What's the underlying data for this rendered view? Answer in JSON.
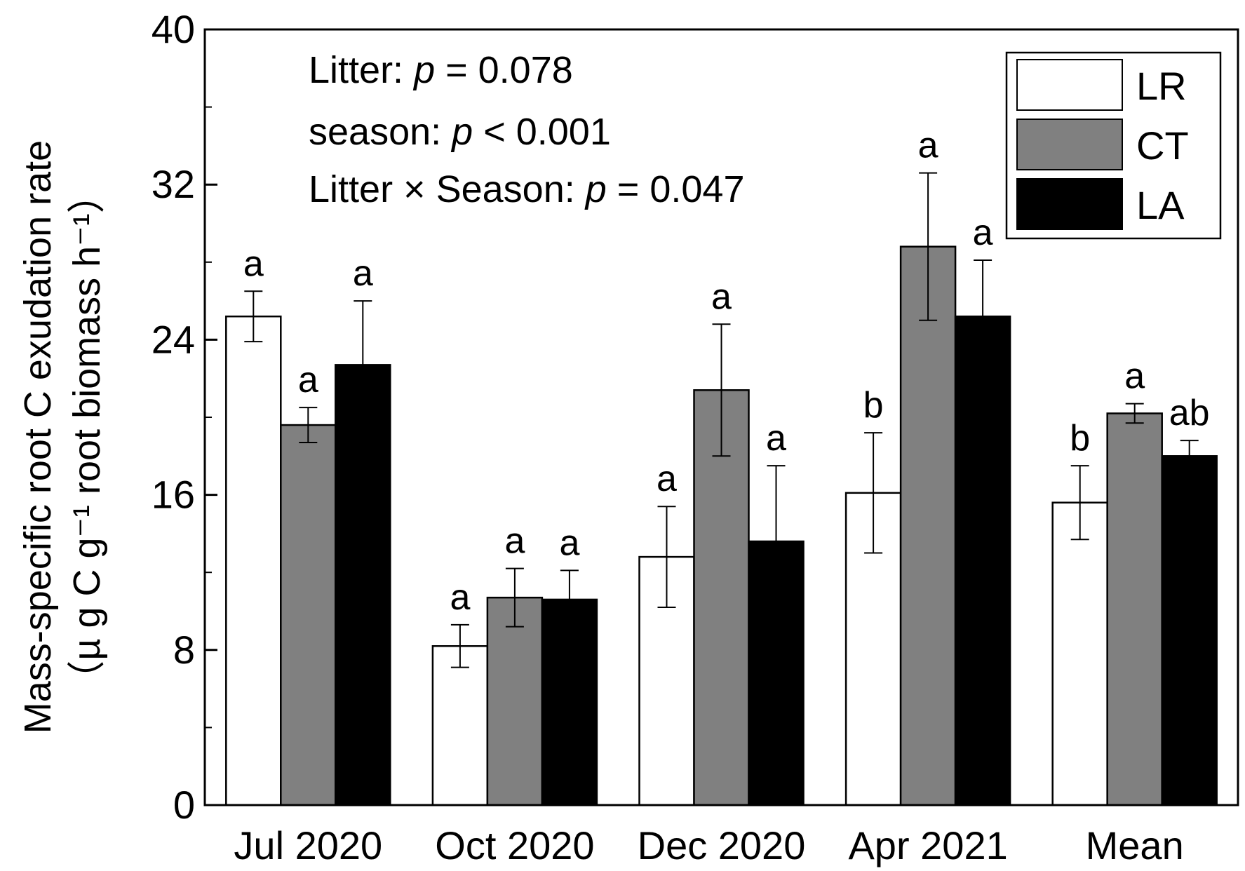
{
  "chart_data": {
    "type": "bar",
    "title": "",
    "xlabel": "",
    "ylabel_line1": "Mass-specific root C exudation rate",
    "ylabel_line2": "（µ g C g⁻¹ root biomass h⁻¹）",
    "ylim": [
      0,
      40
    ],
    "yticks": [
      0,
      8,
      16,
      24,
      32,
      40
    ],
    "grid": false,
    "legend_position": "top-right",
    "categories": [
      "Jul 2020",
      "Oct 2020",
      "Dec 2020",
      "Apr 2021",
      "Mean"
    ],
    "series": [
      {
        "name": "LR",
        "color": "#ffffff",
        "values": [
          25.2,
          8.2,
          12.8,
          16.1,
          15.6
        ],
        "errors": [
          1.3,
          1.1,
          2.6,
          3.1,
          1.9
        ],
        "letters": [
          "a",
          "a",
          "a",
          "b",
          "b"
        ]
      },
      {
        "name": "CT",
        "color": "#808080",
        "values": [
          19.6,
          10.7,
          21.4,
          28.8,
          20.2
        ],
        "errors": [
          0.9,
          1.5,
          3.4,
          3.8,
          0.5
        ],
        "letters": [
          "a",
          "a",
          "a",
          "a",
          "a"
        ]
      },
      {
        "name": "LA",
        "color": "#000000",
        "values": [
          22.7,
          10.6,
          13.6,
          25.2,
          18.0
        ],
        "errors": [
          3.3,
          1.5,
          3.9,
          2.9,
          0.8
        ],
        "letters": [
          "a",
          "a",
          "a",
          "a",
          "ab"
        ]
      }
    ],
    "annotations": [
      {
        "prefix": "Litter: ",
        "italic": "p",
        "suffix": " = 0.078"
      },
      {
        "prefix": "season: ",
        "italic": "p",
        "suffix": " < 0.001"
      },
      {
        "prefix": "Litter × Season: ",
        "italic": "p",
        "suffix": " = 0.047"
      }
    ]
  }
}
